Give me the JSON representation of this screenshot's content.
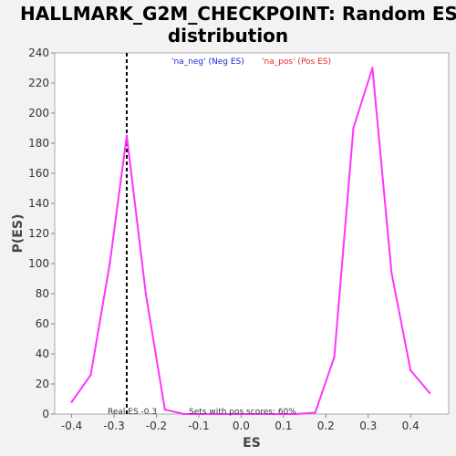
{
  "chart_data": {
    "type": "line",
    "title_line1": "HALLMARK_G2M_CHECKPOINT: Random ES",
    "title_line2": "distribution",
    "xlabel": "ES",
    "ylabel": "P(ES)",
    "xlim": [
      -0.44,
      0.49
    ],
    "ylim": [
      0,
      240
    ],
    "xticks": [
      -0.4,
      -0.3,
      -0.2,
      -0.1,
      0.0,
      0.1,
      0.2,
      0.3,
      0.4
    ],
    "xtick_labels": [
      "-0.4",
      "-0.3",
      "-0.2",
      "-0.1",
      "0.0",
      "0.1",
      "0.2",
      "0.3",
      "0.4"
    ],
    "yticks": [
      0,
      20,
      40,
      60,
      80,
      100,
      120,
      140,
      160,
      180,
      200,
      220,
      240
    ],
    "ytick_labels": [
      "0",
      "20",
      "40",
      "60",
      "80",
      "100",
      "120",
      "140",
      "160",
      "180",
      "200",
      "220",
      "240"
    ],
    "grid": false,
    "series": [
      {
        "color": "#ff33ff",
        "x": [
          -0.4,
          -0.355,
          -0.31,
          -0.27,
          -0.225,
          -0.18,
          -0.135,
          0.0,
          0.13,
          0.175,
          0.22,
          0.265,
          0.31,
          0.355,
          0.4,
          0.445
        ],
        "y": [
          8,
          26,
          100,
          185,
          80,
          3,
          0,
          0,
          0,
          1,
          38,
          190,
          230,
          94,
          29,
          14
        ]
      }
    ],
    "legend": [
      {
        "label": "'na_neg' (Neg ES)",
        "color": "#2222dd"
      },
      {
        "label": "'na_pos' (Pos ES)",
        "color": "#ee2222"
      }
    ],
    "real_es": -0.27,
    "annotations": {
      "real_es_label": "Real ES -0.3",
      "pos_scores_label": "Sets with pos scores: 60%"
    }
  }
}
